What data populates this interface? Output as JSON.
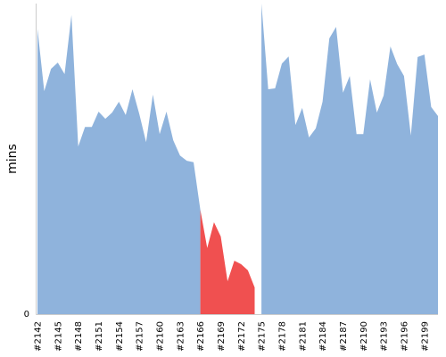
{
  "chart_data": {
    "type": "area",
    "title": "",
    "xlabel": "",
    "ylabel": "mins",
    "y_tick_labels": [
      "0"
    ],
    "ylim": [
      0,
      100
    ],
    "x_tick_labels": [
      "#2142",
      "#2145",
      "#2148",
      "#2151",
      "#2154",
      "#2157",
      "#2160",
      "#2163",
      "#2166",
      "#2169",
      "#2172",
      "#2175",
      "#2178",
      "#2181",
      "#2184",
      "#2187",
      "#2190",
      "#2193",
      "#2196",
      "#2199"
    ],
    "builds": [
      2142,
      2143,
      2144,
      2145,
      2146,
      2147,
      2148,
      2149,
      2150,
      2151,
      2152,
      2153,
      2154,
      2155,
      2156,
      2157,
      2158,
      2159,
      2160,
      2161,
      2162,
      2163,
      2164,
      2165,
      2166,
      2167,
      2168,
      2169,
      2170,
      2171,
      2172,
      2173,
      2174,
      2175,
      2176,
      2177,
      2178,
      2179,
      2180,
      2181,
      2182,
      2183,
      2184,
      2185,
      2186,
      2187,
      2188,
      2189,
      2190,
      2191,
      2192,
      2193,
      2194,
      2195,
      2196,
      2197,
      2198,
      2199,
      2200,
      2201
    ],
    "series": [
      {
        "status": "success",
        "color": "#8fb3dc",
        "values": [
          91.9,
          71.8,
          79.0,
          81.0,
          77.3,
          96.3,
          54.0,
          60.3,
          60.3,
          65.2,
          62.9,
          64.9,
          68.4,
          64.1,
          72.4,
          64.4,
          55.4,
          70.7,
          58.0,
          65.2,
          56.0,
          51.1,
          49.4,
          48.9,
          33.6,
          null,
          null,
          null,
          null,
          null,
          null,
          null,
          null,
          100,
          72.4,
          72.7,
          80.7,
          83.0,
          60.9,
          66.4,
          56.9,
          59.8,
          68.4,
          88.8,
          92.5,
          71.3,
          76.7,
          58.0,
          58.0,
          75.6,
          64.9,
          70.4,
          86.2,
          80.5,
          76.7,
          57.5,
          82.8,
          83.6,
          66.7,
          63.8
        ]
      },
      {
        "status": "failure",
        "color": "#f05050",
        "values": [
          null,
          null,
          null,
          null,
          null,
          null,
          null,
          null,
          null,
          null,
          null,
          null,
          null,
          null,
          null,
          null,
          null,
          null,
          null,
          null,
          null,
          null,
          null,
          null,
          33.6,
          21.3,
          29.6,
          25.0,
          10.6,
          17.2,
          16.1,
          14.1,
          8.6,
          null,
          null,
          null,
          null,
          null,
          null,
          null,
          null,
          null,
          null,
          null,
          null,
          null,
          null,
          null,
          null,
          null,
          null,
          null,
          null,
          null,
          null,
          null,
          null,
          null,
          null,
          null
        ]
      }
    ],
    "grid": false,
    "legend": "none"
  }
}
